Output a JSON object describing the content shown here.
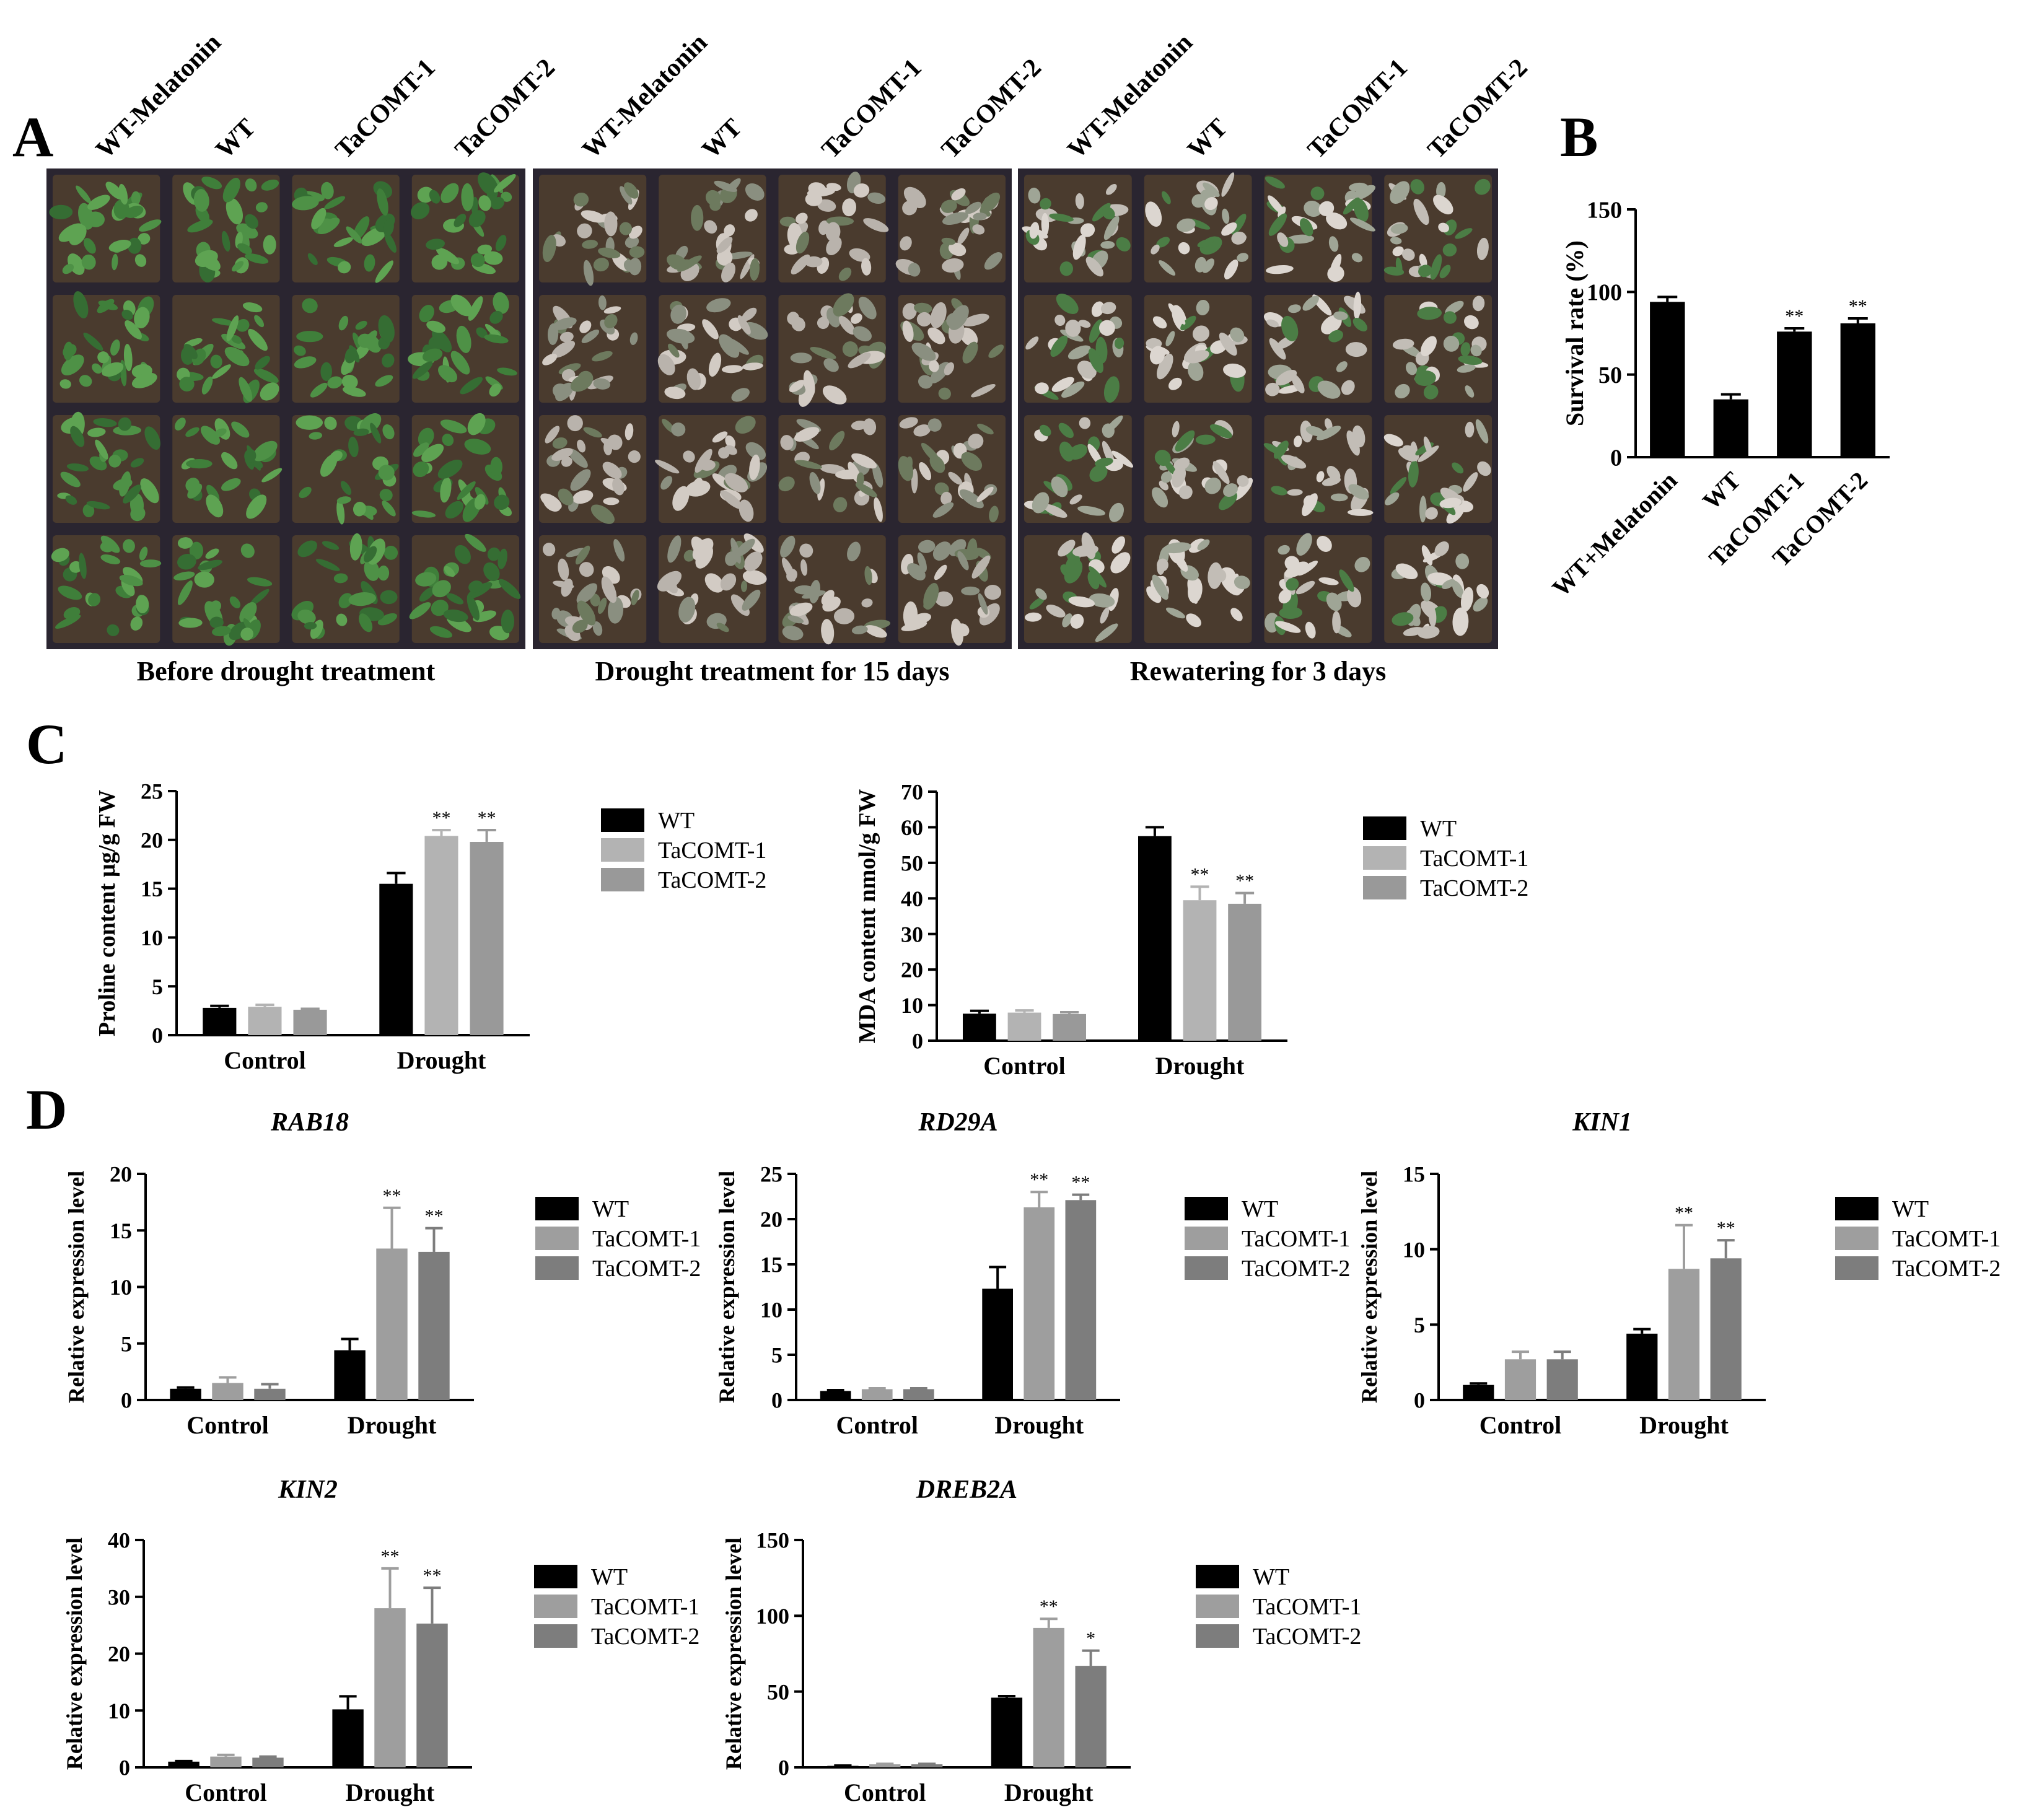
{
  "panel_letters": [
    "A",
    "B",
    "C",
    "D"
  ],
  "photo_panels": [
    {
      "caption": "Before drought treatment",
      "column_labels": [
        "WT-Melatonin",
        "WT",
        "TaCOMT-1",
        "TaCOMT-2"
      ],
      "tone": "green"
    },
    {
      "caption": "Drought treatment for 15 days",
      "column_labels": [
        "WT-Melatonin",
        "WT",
        "TaCOMT-1",
        "TaCOMT-2"
      ],
      "tone": "dry"
    },
    {
      "caption": "Rewatering for 3 days",
      "column_labels": [
        "WT-Melatonin",
        "WT",
        "TaCOMT-1",
        "TaCOMT-2"
      ],
      "tone": "mixed"
    }
  ],
  "colors": {
    "WT": "#000000",
    "TaCOMT-1": "#b3b3b3",
    "TaCOMT-2": "#999999",
    "TaCOMT-1-D": "#9e9e9e",
    "TaCOMT-2-D": "#7d7d7d"
  },
  "chart_data": [
    {
      "id": "B",
      "type": "bar",
      "title": "",
      "xlabel": "",
      "ylabel": "Survival rate (%)",
      "ylim": [
        0,
        150
      ],
      "yticks": [
        0,
        50,
        100,
        150
      ],
      "categories": [
        "WT+Melatonin",
        "WT",
        "TaCOMT-1",
        "TaCOMT-2"
      ],
      "values": [
        94,
        35,
        76,
        81
      ],
      "errors": [
        3,
        3,
        2,
        3
      ],
      "significance": [
        "",
        "",
        "**",
        "**"
      ]
    },
    {
      "id": "C1",
      "type": "bar",
      "title": "",
      "xlabel": "",
      "ylabel": "Proline content µg/g FW",
      "ylim": [
        0,
        25
      ],
      "yticks": [
        0,
        5,
        10,
        15,
        20,
        25
      ],
      "categories": [
        "Control",
        "Drought"
      ],
      "legend": "right",
      "series": [
        {
          "name": "WT",
          "values": [
            2.8,
            15.5
          ],
          "errors": [
            0.2,
            1.1
          ],
          "significance": [
            "",
            ""
          ]
        },
        {
          "name": "TaCOMT-1",
          "values": [
            2.9,
            20.4
          ],
          "errors": [
            0.2,
            0.6
          ],
          "significance": [
            "",
            "**"
          ]
        },
        {
          "name": "TaCOMT-2",
          "values": [
            2.6,
            19.8
          ],
          "errors": [
            0.1,
            1.2
          ],
          "significance": [
            "",
            "**"
          ]
        }
      ]
    },
    {
      "id": "C2",
      "type": "bar",
      "title": "",
      "xlabel": "",
      "ylabel": "MDA content nmol/g FW",
      "ylim": [
        0,
        70
      ],
      "yticks": [
        0,
        10,
        20,
        30,
        40,
        50,
        60,
        70
      ],
      "categories": [
        "Control",
        "Drought"
      ],
      "legend": "right",
      "series": [
        {
          "name": "WT",
          "values": [
            7.6,
            57.5
          ],
          "errors": [
            0.8,
            2.5
          ],
          "significance": [
            "",
            ""
          ]
        },
        {
          "name": "TaCOMT-1",
          "values": [
            7.9,
            39.5
          ],
          "errors": [
            0.6,
            3.8
          ],
          "significance": [
            "",
            "**"
          ]
        },
        {
          "name": "TaCOMT-2",
          "values": [
            7.5,
            38.5
          ],
          "errors": [
            0.5,
            3.0
          ],
          "significance": [
            "",
            "**"
          ]
        }
      ]
    },
    {
      "id": "D1",
      "type": "bar",
      "title": "RAB18",
      "xlabel": "",
      "ylabel": "Relative expression level",
      "ylim": [
        0,
        20
      ],
      "yticks": [
        0,
        5,
        10,
        15,
        20
      ],
      "categories": [
        "Control",
        "Drought"
      ],
      "legend": "right",
      "series": [
        {
          "name": "WT",
          "values": [
            1.0,
            4.4
          ],
          "errors": [
            0.1,
            1.0
          ],
          "significance": [
            "",
            ""
          ]
        },
        {
          "name": "TaCOMT-1",
          "values": [
            1.5,
            13.4
          ],
          "errors": [
            0.5,
            3.6
          ],
          "significance": [
            "",
            "**"
          ]
        },
        {
          "name": "TaCOMT-2",
          "values": [
            1.0,
            13.1
          ],
          "errors": [
            0.4,
            2.1
          ],
          "significance": [
            "",
            "**"
          ]
        }
      ]
    },
    {
      "id": "D2",
      "type": "bar",
      "title": "RD29A",
      "xlabel": "",
      "ylabel": "Relative expression level",
      "ylim": [
        0,
        25
      ],
      "yticks": [
        0,
        5,
        10,
        15,
        20,
        25
      ],
      "categories": [
        "Control",
        "Drought"
      ],
      "legend": "right",
      "series": [
        {
          "name": "WT",
          "values": [
            1.0,
            12.3
          ],
          "errors": [
            0.1,
            2.4
          ],
          "significance": [
            "",
            ""
          ]
        },
        {
          "name": "TaCOMT-1",
          "values": [
            1.2,
            21.3
          ],
          "errors": [
            0.1,
            1.7
          ],
          "significance": [
            "",
            "**"
          ]
        },
        {
          "name": "TaCOMT-2",
          "values": [
            1.2,
            22.1
          ],
          "errors": [
            0.1,
            0.6
          ],
          "significance": [
            "",
            "**"
          ]
        }
      ]
    },
    {
      "id": "D3",
      "type": "bar",
      "title": "KIN1",
      "xlabel": "",
      "ylabel": "Relative expression level",
      "ylim": [
        0,
        15
      ],
      "yticks": [
        0,
        5,
        10,
        15
      ],
      "categories": [
        "Control",
        "Drought"
      ],
      "legend": "right",
      "series": [
        {
          "name": "WT",
          "values": [
            1.0,
            4.4
          ],
          "errors": [
            0.1,
            0.3
          ],
          "significance": [
            "",
            ""
          ]
        },
        {
          "name": "TaCOMT-1",
          "values": [
            2.7,
            8.7
          ],
          "errors": [
            0.5,
            2.9
          ],
          "significance": [
            "",
            "**"
          ]
        },
        {
          "name": "TaCOMT-2",
          "values": [
            2.7,
            9.4
          ],
          "errors": [
            0.5,
            1.2
          ],
          "significance": [
            "",
            "**"
          ]
        }
      ]
    },
    {
      "id": "D4",
      "type": "bar",
      "title": "KIN2",
      "xlabel": "",
      "ylabel": "Relative expression level",
      "ylim": [
        0,
        40
      ],
      "yticks": [
        0,
        10,
        20,
        30,
        40
      ],
      "categories": [
        "Control",
        "Drought"
      ],
      "legend": "right",
      "series": [
        {
          "name": "WT",
          "values": [
            1.0,
            10.2
          ],
          "errors": [
            0.1,
            2.3
          ],
          "significance": [
            "",
            ""
          ]
        },
        {
          "name": "TaCOMT-1",
          "values": [
            1.9,
            28.0
          ],
          "errors": [
            0.3,
            7.0
          ],
          "significance": [
            "",
            "**"
          ]
        },
        {
          "name": "TaCOMT-2",
          "values": [
            1.7,
            25.3
          ],
          "errors": [
            0.2,
            6.3
          ],
          "significance": [
            "",
            "**"
          ]
        }
      ]
    },
    {
      "id": "D5",
      "type": "bar",
      "title": "DREB2A",
      "xlabel": "",
      "ylabel": "Relative expression level",
      "ylim": [
        0,
        150
      ],
      "yticks": [
        0,
        50,
        100,
        150
      ],
      "categories": [
        "Control",
        "Drought"
      ],
      "legend": "right",
      "series": [
        {
          "name": "WT",
          "values": [
            1.0,
            46.0
          ],
          "errors": [
            0.2,
            1.0
          ],
          "significance": [
            "",
            ""
          ]
        },
        {
          "name": "TaCOMT-1",
          "values": [
            2.0,
            92.0
          ],
          "errors": [
            0.3,
            6.0
          ],
          "significance": [
            "",
            "**"
          ]
        },
        {
          "name": "TaCOMT-2",
          "values": [
            2.0,
            67.0
          ],
          "errors": [
            0.3,
            10.0
          ],
          "significance": [
            "",
            "*"
          ]
        }
      ]
    }
  ]
}
